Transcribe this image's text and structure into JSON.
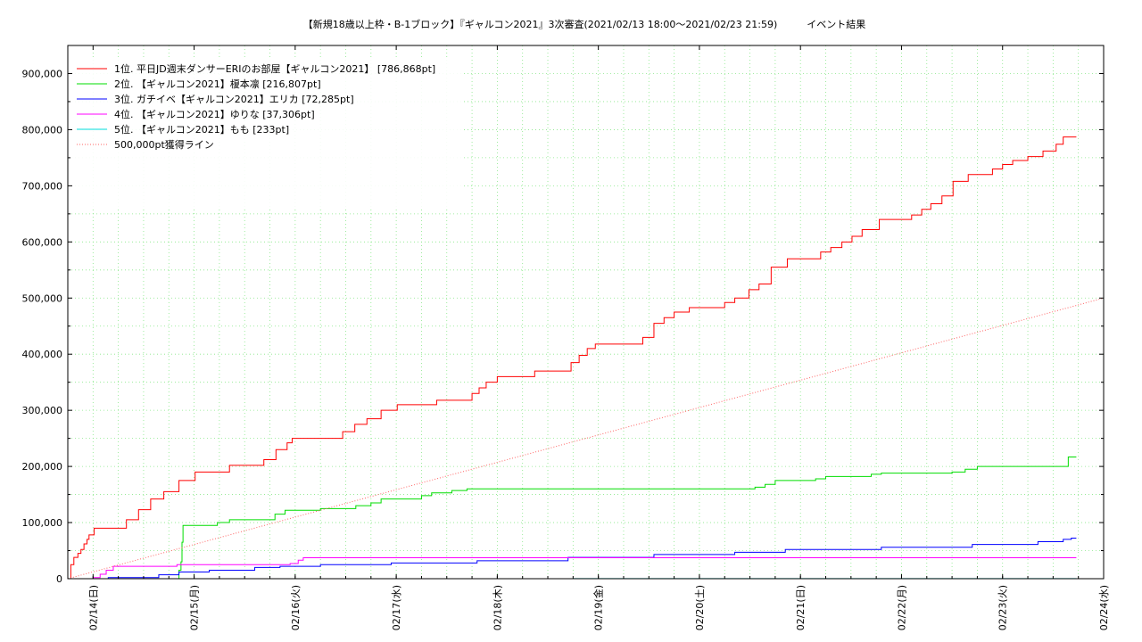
{
  "chart_data": {
    "type": "line",
    "title": "【新規18歳以上枠・B-1ブロック】『ギャルコン2021』3次審査(2021/02/13 18:00～2021/02/23 21:59)　　　イベント結果",
    "xlabel": "",
    "ylabel": "",
    "x_axis": {
      "range_days": [
        0,
        10.25
      ],
      "ticks": [
        {
          "t": 0.25,
          "label": "02/14(日)"
        },
        {
          "t": 1.25,
          "label": "02/15(月)"
        },
        {
          "t": 2.25,
          "label": "02/16(火)"
        },
        {
          "t": 3.25,
          "label": "02/17(水)"
        },
        {
          "t": 4.25,
          "label": "02/18(木)"
        },
        {
          "t": 5.25,
          "label": "02/19(金)"
        },
        {
          "t": 6.25,
          "label": "02/20(土)"
        },
        {
          "t": 7.25,
          "label": "02/21(日)"
        },
        {
          "t": 8.25,
          "label": "02/22(月)"
        },
        {
          "t": 9.25,
          "label": "02/23(火)"
        },
        {
          "t": 10.25,
          "label": "02/24(水)"
        }
      ]
    },
    "ylim": [
      0,
      950000
    ],
    "y_ticks": [
      {
        "v": 0,
        "label": "0"
      },
      {
        "v": 100000,
        "label": "100,000"
      },
      {
        "v": 200000,
        "label": "200,000"
      },
      {
        "v": 300000,
        "label": "300,000"
      },
      {
        "v": 400000,
        "label": "400,000"
      },
      {
        "v": 500000,
        "label": "500,000"
      },
      {
        "v": 600000,
        "label": "600,000"
      },
      {
        "v": 700000,
        "label": "700,000"
      },
      {
        "v": 800000,
        "label": "800,000"
      },
      {
        "v": 900000,
        "label": "900,000"
      }
    ],
    "grid": true,
    "legend_position": "top-left",
    "series": [
      {
        "name": "1位. 平日JD週末ダンサーERIのお部屋【ギャルコン2021】 [786,868pt]",
        "color": "#ff0000",
        "style": "step",
        "points": [
          [
            0,
            0
          ],
          [
            0.03,
            25000
          ],
          [
            0.06,
            38000
          ],
          [
            0.1,
            45000
          ],
          [
            0.13,
            52000
          ],
          [
            0.16,
            62000
          ],
          [
            0.19,
            70000
          ],
          [
            0.21,
            78000
          ],
          [
            0.26,
            90000
          ],
          [
            0.58,
            105000
          ],
          [
            0.7,
            123000
          ],
          [
            0.82,
            142000
          ],
          [
            0.95,
            155000
          ],
          [
            1.1,
            175000
          ],
          [
            1.26,
            190000
          ],
          [
            1.6,
            202000
          ],
          [
            1.94,
            212000
          ],
          [
            2.06,
            230000
          ],
          [
            2.17,
            242000
          ],
          [
            2.22,
            250000
          ],
          [
            2.72,
            262000
          ],
          [
            2.84,
            275000
          ],
          [
            2.96,
            285000
          ],
          [
            3.1,
            300000
          ],
          [
            3.26,
            310000
          ],
          [
            3.65,
            318000
          ],
          [
            4.0,
            330000
          ],
          [
            4.07,
            340000
          ],
          [
            4.14,
            350000
          ],
          [
            4.25,
            360000
          ],
          [
            4.62,
            370000
          ],
          [
            4.98,
            385000
          ],
          [
            5.06,
            398000
          ],
          [
            5.14,
            410000
          ],
          [
            5.22,
            418000
          ],
          [
            5.69,
            430000
          ],
          [
            5.8,
            455000
          ],
          [
            5.9,
            465000
          ],
          [
            6.0,
            475000
          ],
          [
            6.15,
            483000
          ],
          [
            6.5,
            492000
          ],
          [
            6.6,
            500000
          ],
          [
            6.74,
            515000
          ],
          [
            6.84,
            525000
          ],
          [
            6.96,
            555000
          ],
          [
            7.12,
            570000
          ],
          [
            7.45,
            582000
          ],
          [
            7.55,
            590000
          ],
          [
            7.66,
            600000
          ],
          [
            7.76,
            610000
          ],
          [
            7.86,
            622000
          ],
          [
            8.03,
            640000
          ],
          [
            8.35,
            648000
          ],
          [
            8.45,
            658000
          ],
          [
            8.54,
            668000
          ],
          [
            8.65,
            682000
          ],
          [
            8.76,
            708000
          ],
          [
            8.91,
            720000
          ],
          [
            9.15,
            730000
          ],
          [
            9.25,
            738000
          ],
          [
            9.35,
            745000
          ],
          [
            9.5,
            752000
          ],
          [
            9.65,
            762000
          ],
          [
            9.78,
            774000
          ],
          [
            9.85,
            786868
          ],
          [
            9.98,
            786868
          ]
        ]
      },
      {
        "name": "2位. 【ギャルコン2021】榎本凛 [216,807pt]",
        "color": "#00dd00",
        "style": "step",
        "points": [
          [
            0,
            0
          ],
          [
            0.9,
            0
          ],
          [
            1.1,
            15000
          ],
          [
            1.12,
            30000
          ],
          [
            1.13,
            65000
          ],
          [
            1.14,
            95000
          ],
          [
            1.48,
            100000
          ],
          [
            1.6,
            105000
          ],
          [
            2.05,
            115000
          ],
          [
            2.15,
            122000
          ],
          [
            2.5,
            125000
          ],
          [
            2.85,
            130000
          ],
          [
            3.0,
            135000
          ],
          [
            3.1,
            142000
          ],
          [
            3.5,
            148000
          ],
          [
            3.6,
            153000
          ],
          [
            3.8,
            157000
          ],
          [
            3.95,
            160000
          ],
          [
            6.7,
            160000
          ],
          [
            6.8,
            163000
          ],
          [
            6.9,
            168000
          ],
          [
            7.0,
            175000
          ],
          [
            7.4,
            178000
          ],
          [
            7.5,
            182000
          ],
          [
            7.95,
            186000
          ],
          [
            8.05,
            188000
          ],
          [
            8.75,
            190000
          ],
          [
            8.88,
            195000
          ],
          [
            9.0,
            200000
          ],
          [
            9.85,
            200000
          ],
          [
            9.9,
            216807
          ],
          [
            9.98,
            216807
          ]
        ]
      },
      {
        "name": "3位. ガチイベ【ギャルコン2021】エリカ [72,285pt]",
        "color": "#0000ff",
        "style": "step",
        "points": [
          [
            0,
            0
          ],
          [
            0.4,
            2000
          ],
          [
            0.9,
            7000
          ],
          [
            1.1,
            12000
          ],
          [
            1.4,
            15000
          ],
          [
            1.85,
            20000
          ],
          [
            2.1,
            22000
          ],
          [
            2.5,
            25000
          ],
          [
            3.2,
            28000
          ],
          [
            4.05,
            32000
          ],
          [
            4.95,
            38000
          ],
          [
            5.8,
            43000
          ],
          [
            6.6,
            47000
          ],
          [
            7.1,
            52000
          ],
          [
            8.05,
            56000
          ],
          [
            8.95,
            61000
          ],
          [
            9.6,
            66000
          ],
          [
            9.85,
            70000
          ],
          [
            9.93,
            72285
          ],
          [
            9.98,
            72285
          ]
        ]
      },
      {
        "name": "4位. 【ギャルコン2021】ゆりな [37,306pt]",
        "color": "#ff00ff",
        "style": "step",
        "points": [
          [
            0,
            0
          ],
          [
            0.25,
            2000
          ],
          [
            0.32,
            8000
          ],
          [
            0.38,
            15000
          ],
          [
            0.45,
            22000
          ],
          [
            1.08,
            25000
          ],
          [
            2.2,
            27000
          ],
          [
            2.28,
            33000
          ],
          [
            2.33,
            37306
          ],
          [
            9.98,
            37306
          ]
        ]
      },
      {
        "name": "5位. 【ギャルコン2021】もも [233pt]",
        "color": "#00dddd",
        "style": "step",
        "points": [
          [
            0,
            0
          ],
          [
            5,
            233
          ],
          [
            9.98,
            233
          ]
        ]
      },
      {
        "name": "500,000pt獲得ライン",
        "color": "#ff6666",
        "style": "dotted",
        "points": [
          [
            0,
            0
          ],
          [
            10.25,
            500000
          ]
        ]
      }
    ]
  }
}
